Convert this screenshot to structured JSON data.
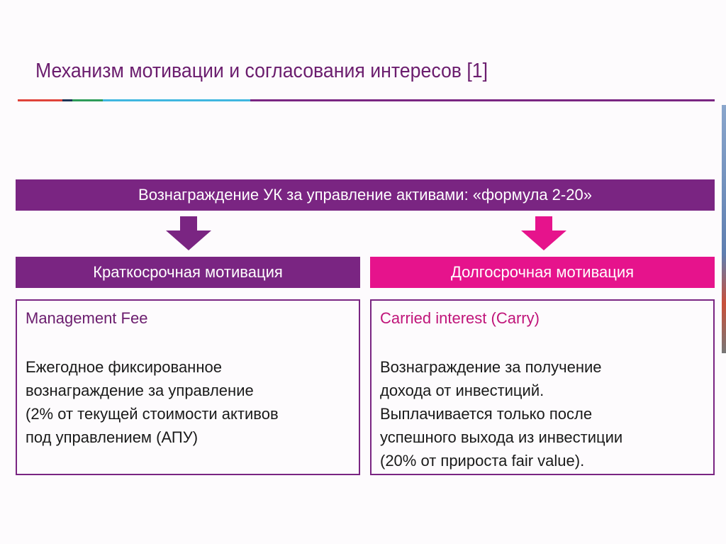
{
  "title": "Механизм мотивации и согласования интересов [1]",
  "colors": {
    "purple": "#7a2582",
    "pink": "#e6138c",
    "title": "#6b1d6e"
  },
  "banner": "Вознаграждение УК за управление активами: «формула 2-20»",
  "left": {
    "header": "Краткосрочная мотивация",
    "title": "Management Fee",
    "lines": [
      "Ежегодное фиксированное",
      "вознаграждение за управление",
      "(2% от текущей стоимости активов",
      "под управлением (АПУ)"
    ]
  },
  "right": {
    "header": "Долгосрочная мотивация",
    "title": "Carried interest (Carry)",
    "lines": [
      "Вознаграждение за получение",
      "дохода от инвестиций.",
      "Выплачивается только после",
      "успешного выхода из инвестиции",
      "(20% от прироста fair value)."
    ]
  }
}
